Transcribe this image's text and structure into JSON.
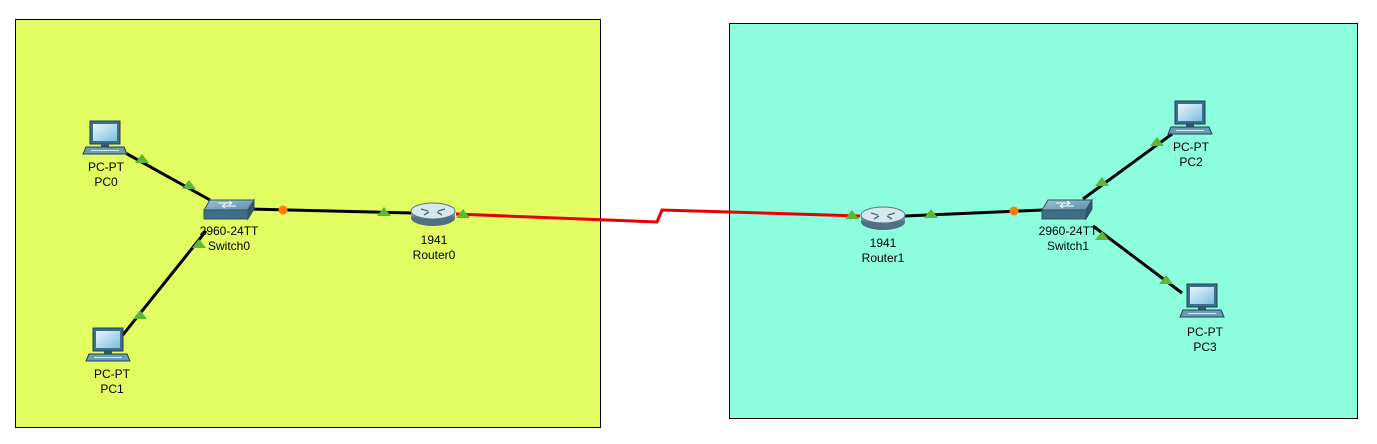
{
  "colors": {
    "area_left": "#e2fd62",
    "area_right": "#8cfede",
    "link": "#000000",
    "serial_link": "#e80000",
    "port_up": "#5cb832",
    "port_pending": "#ff7f00"
  },
  "areas": [
    {
      "id": "area-left"
    },
    {
      "id": "area-right"
    }
  ],
  "devices": [
    {
      "id": "pc0",
      "icon": "pc-icon",
      "model": "PC-PT",
      "name": "PC0"
    },
    {
      "id": "pc1",
      "icon": "pc-icon",
      "model": "PC-PT",
      "name": "PC1"
    },
    {
      "id": "switch0",
      "icon": "switch-icon",
      "model": "2960-24TT",
      "name": "Switch0"
    },
    {
      "id": "router0",
      "icon": "router-icon",
      "model": "1941",
      "name": "Router0"
    },
    {
      "id": "router1",
      "icon": "router-icon",
      "model": "1941",
      "name": "Router1"
    },
    {
      "id": "switch1",
      "icon": "switch-icon",
      "model": "2960-24TT",
      "name": "Switch1"
    },
    {
      "id": "pc2",
      "icon": "pc-icon",
      "model": "PC-PT",
      "name": "PC2"
    },
    {
      "id": "pc3",
      "icon": "pc-icon",
      "model": "PC-PT",
      "name": "PC3"
    }
  ],
  "links": [
    {
      "from": "pc0",
      "to": "switch0",
      "type": "copper"
    },
    {
      "from": "pc1",
      "to": "switch0",
      "type": "copper"
    },
    {
      "from": "switch0",
      "to": "router0",
      "type": "copper"
    },
    {
      "from": "router0",
      "to": "router1",
      "type": "serial"
    },
    {
      "from": "router1",
      "to": "switch1",
      "type": "copper"
    },
    {
      "from": "switch1",
      "to": "pc2",
      "type": "copper"
    },
    {
      "from": "switch1",
      "to": "pc3",
      "type": "copper"
    }
  ]
}
